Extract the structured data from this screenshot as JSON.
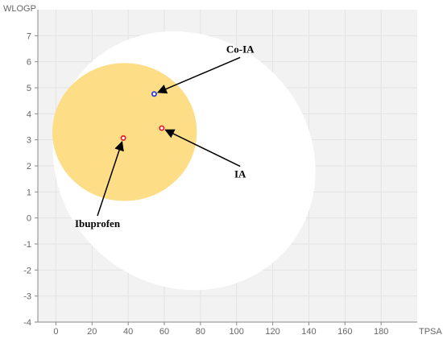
{
  "chart_data": {
    "type": "scatter",
    "xlabel": "TPSA",
    "ylabel": "WLOGP",
    "xlim": [
      -10,
      200
    ],
    "ylim": [
      -4,
      8
    ],
    "x_ticks": [
      0,
      20,
      40,
      60,
      80,
      100,
      120,
      140,
      160,
      180
    ],
    "y_ticks": [
      -4,
      -3,
      -2,
      -1,
      0,
      1,
      2,
      3,
      4,
      5,
      6,
      7
    ],
    "grid": true,
    "regions": [
      {
        "name": "white",
        "color": "#ffffff",
        "shape": "ellipse",
        "center": [
          71,
          2.2
        ],
        "radius": [
          75,
          4.8
        ],
        "rotation_deg": 40
      },
      {
        "name": "yolk",
        "color": "#fddd85",
        "shape": "ellipse",
        "center": [
          38,
          3.3
        ],
        "radius": [
          40,
          2.65
        ],
        "rotation_deg": 0
      }
    ],
    "points": [
      {
        "label": "Co-IA",
        "x": 54.4,
        "y": 4.76,
        "color": "#2a3adf",
        "label_pos": [
          102,
          6.35
        ]
      },
      {
        "label": "IA",
        "x": 58.6,
        "y": 3.45,
        "color": "#e2252a",
        "label_pos": [
          102,
          1.55
        ]
      },
      {
        "label": "Ibuprofen",
        "x": 37.3,
        "y": 3.07,
        "color": "#e2252a",
        "label_pos": [
          23,
          -0.35
        ]
      }
    ]
  }
}
